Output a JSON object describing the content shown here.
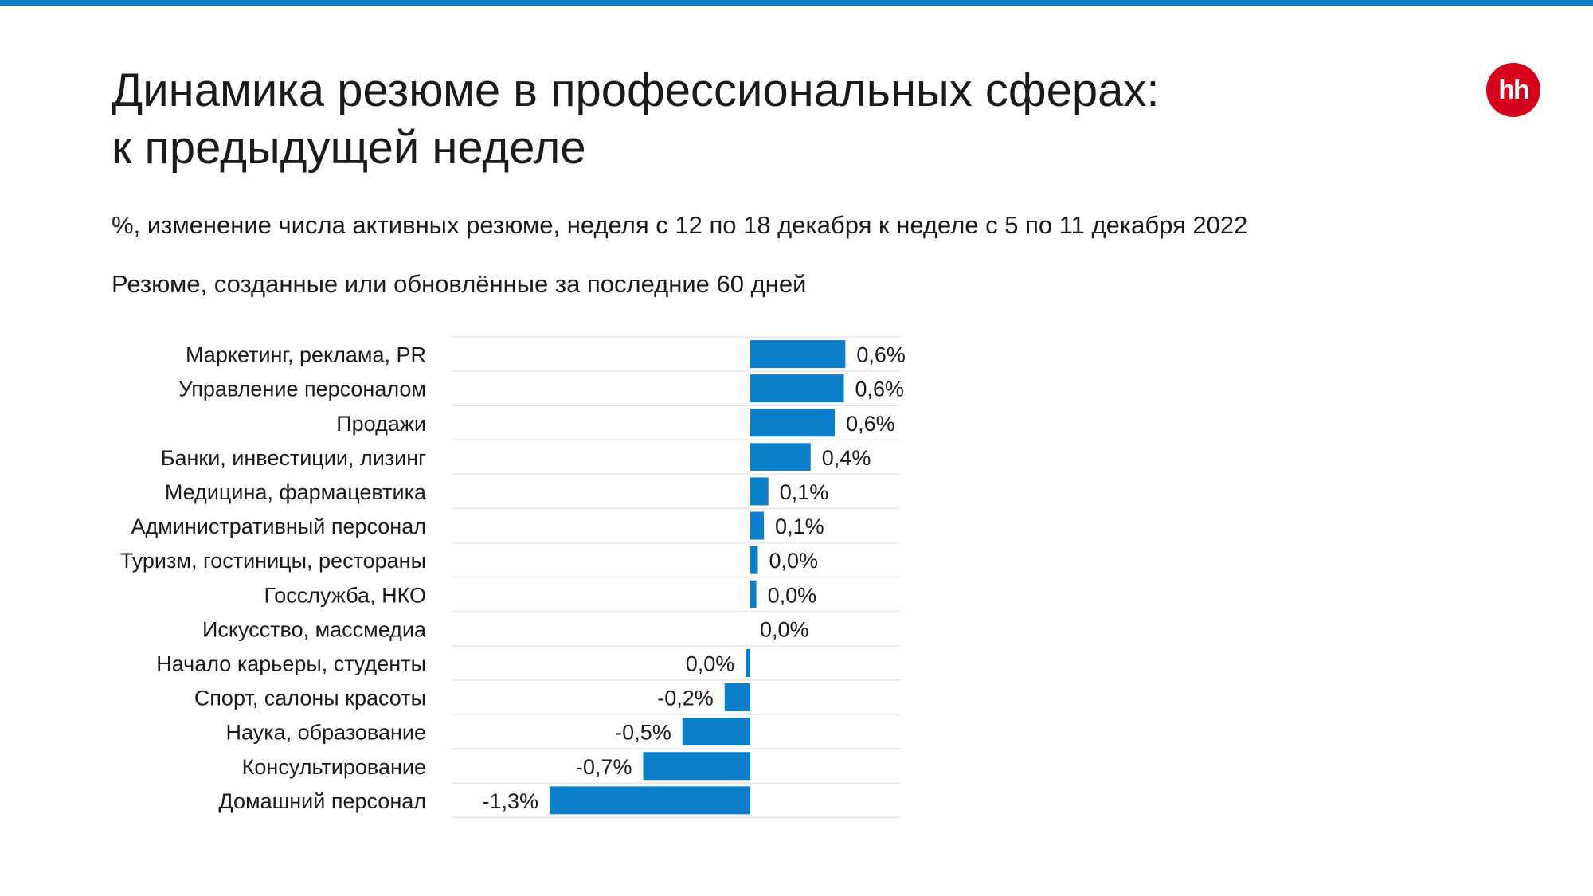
{
  "header": {
    "title_line1": "Динамика резюме в профессиональных сферах:",
    "title_line2": "к предыдущей неделе",
    "subtitle": "%, изменение числа активных резюме, неделя с 12 по 18 декабря к неделе с 5 по 11 декабря 2022",
    "subtitle2": "Резюме, созданные или обновлённые за последние 60 дней",
    "logo_text": "hh"
  },
  "colors": {
    "accent": "#0b7fcc",
    "bar": "#0b7fcc",
    "logo": "#d6001c",
    "grid": "#e6e6e6"
  },
  "chart_data": {
    "type": "bar",
    "orientation": "horizontal",
    "categories": [
      "Маркетинг, реклама, PR",
      "Управление персоналом",
      "Продажи",
      "Банки, инвестиции, лизинг",
      "Медицина, фармацевтика",
      "Административный персонал",
      "Туризм, гостиницы, рестораны",
      "Госслужба, НКО",
      "Искусство, массмедиа",
      "Начало карьеры, студенты",
      "Спорт, салоны красоты",
      "Наука, образование",
      "Консультирование",
      "Домашний персонал"
    ],
    "values": [
      0.63,
      0.62,
      0.56,
      0.4,
      0.12,
      0.09,
      0.05,
      0.04,
      0.0,
      -0.03,
      -0.17,
      -0.45,
      -0.71,
      -1.33
    ],
    "labels": [
      "0,6%",
      "0,6%",
      "0,6%",
      "0,4%",
      "0,1%",
      "0,1%",
      "0,0%",
      "0,0%",
      "0,0%",
      "0,0%",
      "-0,2%",
      "-0,5%",
      "-0,7%",
      "-1,3%"
    ],
    "xlim": [
      -2.0,
      1.0
    ],
    "grid": true
  }
}
